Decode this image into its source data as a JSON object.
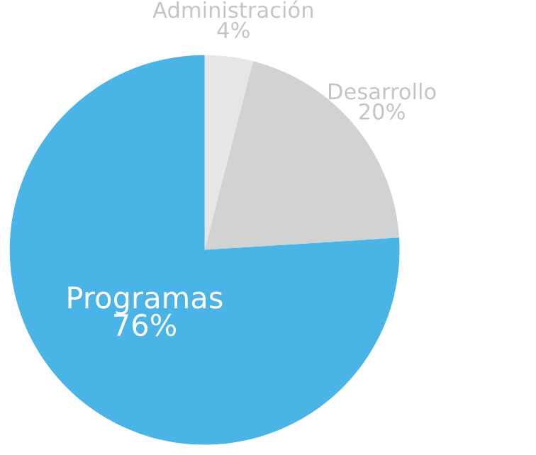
{
  "chart_data": {
    "type": "pie",
    "categories": [
      "Administración",
      "Desarrollo",
      "Programas"
    ],
    "values": [
      4,
      20,
      76
    ],
    "value_labels": [
      "4%",
      "20%",
      "76%"
    ],
    "colors": [
      "#e6e6e6",
      "#d1d2d4",
      "#4ab4e6"
    ],
    "legend": false
  }
}
